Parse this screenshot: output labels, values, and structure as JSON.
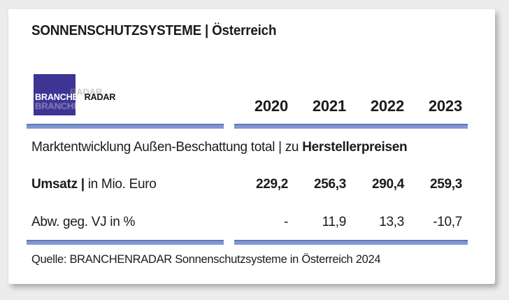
{
  "header": {
    "title": "SONNENSCHUTZSYSTEME | Österreich"
  },
  "logo": {
    "part1": "BRANCHEN",
    "part2": "RADAR",
    "square_color": "#3d3494"
  },
  "table": {
    "years": [
      "2020",
      "2021",
      "2022",
      "2023"
    ],
    "section_label": {
      "regular": "Marktentwicklung Außen-Beschattung total | zu ",
      "bold": "Herstellerpreisen"
    },
    "rows": [
      {
        "label_bold": "Umsatz |",
        "label_rest": " in Mio. Euro",
        "values": [
          "229,2",
          "256,3",
          "290,4",
          "259,3"
        ]
      },
      {
        "label_bold": "",
        "label_rest": "Abw. geg. VJ in %",
        "values": [
          "-",
          "11,9",
          "13,3",
          "-10,7"
        ]
      }
    ]
  },
  "source": "Quelle: BRANCHENRADAR Sonnenschutzsysteme in Österreich 2024",
  "colors": {
    "accent_bar": "#8297d1",
    "accent_bar_edge": "#5f76b9",
    "logo_square": "#3d3494",
    "text": "#1b1b1b",
    "page_background": "#ececec",
    "card_background": "#ffffff"
  },
  "chart_data": {
    "type": "table",
    "title": "SONNENSCHUTZSYSTEME | Österreich",
    "subtitle": "Marktentwicklung Außen-Beschattung total | zu Herstellerpreisen",
    "categories": [
      "2020",
      "2021",
      "2022",
      "2023"
    ],
    "series": [
      {
        "name": "Umsatz | in Mio. Euro",
        "values": [
          229.2,
          256.3,
          290.4,
          259.3
        ]
      },
      {
        "name": "Abw. geg. VJ in %",
        "values": [
          null,
          11.9,
          13.3,
          -10.7
        ]
      }
    ],
    "source": "Quelle: BRANCHENRADAR Sonnenschutzsysteme in Österreich 2024"
  }
}
